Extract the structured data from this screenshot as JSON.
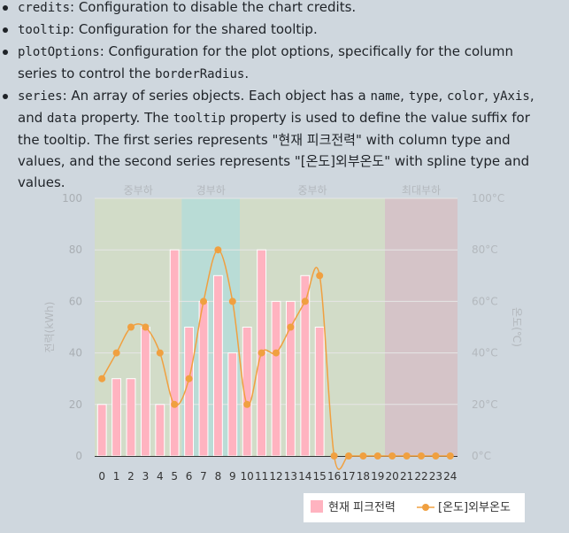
{
  "doc": {
    "items": [
      {
        "code": "credits",
        "text": ": Configuration to disable the chart credits."
      },
      {
        "code": "tooltip",
        "text": ": Configuration for the shared tooltip."
      },
      {
        "code": "plotOptions",
        "text": ": Configuration for the plot options, specifically for the column series to control the ",
        "code2": "borderRadius",
        "text2": "."
      },
      {
        "code": "series",
        "text": ": An array of series objects. Each object has a ",
        "c_name": "name",
        "t1": ", ",
        "c_type": "type",
        "t2": ", ",
        "c_color": "color",
        "t3": ", ",
        "c_yaxis": "yAxis",
        "t4": ", and ",
        "c_data": "data",
        "t5": " property. The ",
        "c_tooltip": "tooltip",
        "t6": " property is used to define the value suffix for the tooltip. The first series represents \"현재 피크전력\" with column type and values, and the second series represents \"[온도]외부온도\" with spline type and values."
      }
    ]
  },
  "chart_data": {
    "type": "bar",
    "categories": [
      "0",
      "1",
      "2",
      "3",
      "4",
      "5",
      "6",
      "7",
      "8",
      "9",
      "10",
      "11",
      "12",
      "13",
      "14",
      "15",
      "16",
      "17",
      "18",
      "19",
      "20",
      "21",
      "22",
      "23",
      "24"
    ],
    "series": [
      {
        "name": "현재 피크전력",
        "type": "column",
        "color": "#ffb3c0",
        "values": [
          20,
          30,
          30,
          50,
          20,
          80,
          50,
          60,
          70,
          40,
          50,
          80,
          60,
          60,
          70,
          50,
          null,
          null,
          null,
          null,
          null,
          null,
          null,
          null,
          null
        ]
      },
      {
        "name": "[온도]외부온도",
        "type": "spline",
        "color": "#f0a040",
        "values": [
          30,
          40,
          50,
          50,
          40,
          20,
          30,
          60,
          80,
          60,
          20,
          40,
          40,
          50,
          60,
          70,
          0,
          0,
          0,
          0,
          0,
          0,
          0,
          0,
          0
        ]
      }
    ],
    "yAxisLeft": {
      "title": "전력(kWh)",
      "ticks": [
        "0",
        "20",
        "40",
        "60",
        "80",
        "100"
      ],
      "min": 0,
      "max": 100
    },
    "yAxisRight": {
      "title": "온도(℃)",
      "ticks": [
        "0°C",
        "20°C",
        "40°C",
        "60°C",
        "80°C",
        "100°C"
      ],
      "min": 0,
      "max": 100
    },
    "bands": [
      {
        "label": "중부하",
        "from": -0.5,
        "to": 5.5,
        "color": "#d2dcc8"
      },
      {
        "label": "경부하",
        "from": 5.5,
        "to": 9.5,
        "color": "#b9dcd6"
      },
      {
        "label": "중부하",
        "from": 9.5,
        "to": 19.5,
        "color": "#d2dcc8"
      },
      {
        "label": "최대부하",
        "from": 19.5,
        "to": 24.5,
        "color": "#d5c4c8"
      }
    ],
    "legend": {
      "position": "bottom-right"
    },
    "grid": true
  }
}
